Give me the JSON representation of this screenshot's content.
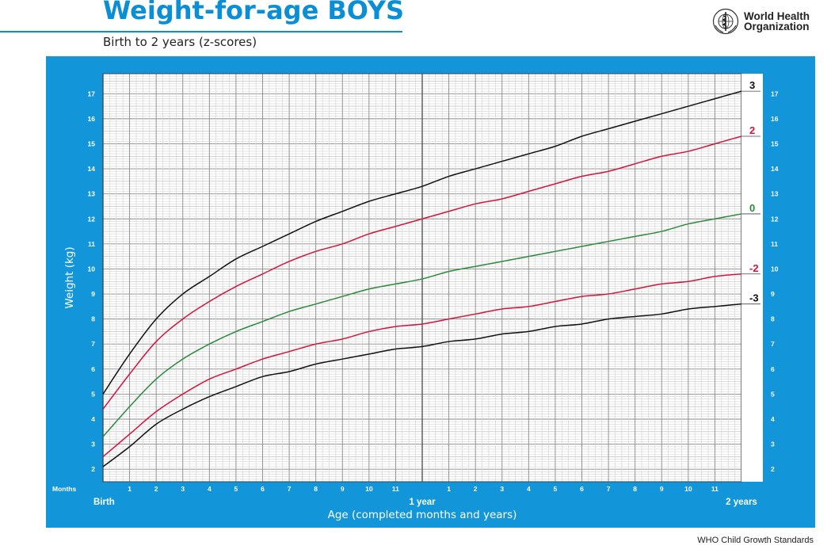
{
  "header": {
    "title": "Weight-for-age BOYS",
    "subtitle": "Birth to 2 years (z-scores)",
    "org_name_line1": "World Health",
    "org_name_line2": "Organization"
  },
  "footer": {
    "text": "WHO Child Growth Standards"
  },
  "colors": {
    "accent_blue": "#0a8fd6",
    "chart_bg": "#1296d9",
    "z3": "#111111",
    "z2": "#d4143c",
    "z0": "#2a8a3a"
  },
  "chart_data": {
    "type": "line",
    "title": "Weight-for-age BOYS",
    "subtitle": "Birth to 2 years (z-scores)",
    "xlabel": "Age (completed months and years)",
    "ylabel": "Weight (kg)",
    "xlim": [
      0,
      24
    ],
    "ylim": [
      1.5,
      17.8
    ],
    "grid": true,
    "x_corner_label": "Months",
    "x_major_labels": [
      {
        "x": 0,
        "label": "Birth"
      },
      {
        "x": 12,
        "label": "1 year"
      },
      {
        "x": 24,
        "label": "2 years"
      }
    ],
    "x_minor_labels": [
      "1",
      "2",
      "3",
      "4",
      "5",
      "6",
      "7",
      "8",
      "9",
      "10",
      "11",
      "1",
      "2",
      "3",
      "4",
      "5",
      "6",
      "7",
      "8",
      "9",
      "10",
      "11"
    ],
    "y_ticks": [
      2,
      3,
      4,
      5,
      6,
      7,
      8,
      9,
      10,
      11,
      12,
      13,
      14,
      15,
      16,
      17
    ],
    "x": [
      0,
      1,
      2,
      3,
      4,
      5,
      6,
      7,
      8,
      9,
      10,
      11,
      12,
      13,
      14,
      15,
      16,
      17,
      18,
      19,
      20,
      21,
      22,
      23,
      24
    ],
    "series": [
      {
        "name": "3",
        "color": "#111111",
        "values": [
          5.0,
          6.6,
          8.0,
          9.0,
          9.7,
          10.4,
          10.9,
          11.4,
          11.9,
          12.3,
          12.7,
          13.0,
          13.3,
          13.7,
          14.0,
          14.3,
          14.6,
          14.9,
          15.3,
          15.6,
          15.9,
          16.2,
          16.5,
          16.8,
          17.1
        ]
      },
      {
        "name": "2",
        "color": "#d4143c",
        "values": [
          4.4,
          5.8,
          7.1,
          8.0,
          8.7,
          9.3,
          9.8,
          10.3,
          10.7,
          11.0,
          11.4,
          11.7,
          12.0,
          12.3,
          12.6,
          12.8,
          13.1,
          13.4,
          13.7,
          13.9,
          14.2,
          14.5,
          14.7,
          15.0,
          15.3
        ]
      },
      {
        "name": "0",
        "color": "#2a8a3a",
        "values": [
          3.3,
          4.5,
          5.6,
          6.4,
          7.0,
          7.5,
          7.9,
          8.3,
          8.6,
          8.9,
          9.2,
          9.4,
          9.6,
          9.9,
          10.1,
          10.3,
          10.5,
          10.7,
          10.9,
          11.1,
          11.3,
          11.5,
          11.8,
          12.0,
          12.2
        ]
      },
      {
        "name": "-2",
        "color": "#d4143c",
        "values": [
          2.5,
          3.4,
          4.3,
          5.0,
          5.6,
          6.0,
          6.4,
          6.7,
          7.0,
          7.2,
          7.5,
          7.7,
          7.8,
          8.0,
          8.2,
          8.4,
          8.5,
          8.7,
          8.9,
          9.0,
          9.2,
          9.4,
          9.5,
          9.7,
          9.8
        ]
      },
      {
        "name": "-3",
        "color": "#111111",
        "values": [
          2.1,
          2.9,
          3.8,
          4.4,
          4.9,
          5.3,
          5.7,
          5.9,
          6.2,
          6.4,
          6.6,
          6.8,
          6.9,
          7.1,
          7.2,
          7.4,
          7.5,
          7.7,
          7.8,
          8.0,
          8.1,
          8.2,
          8.4,
          8.5,
          8.6
        ]
      }
    ]
  }
}
